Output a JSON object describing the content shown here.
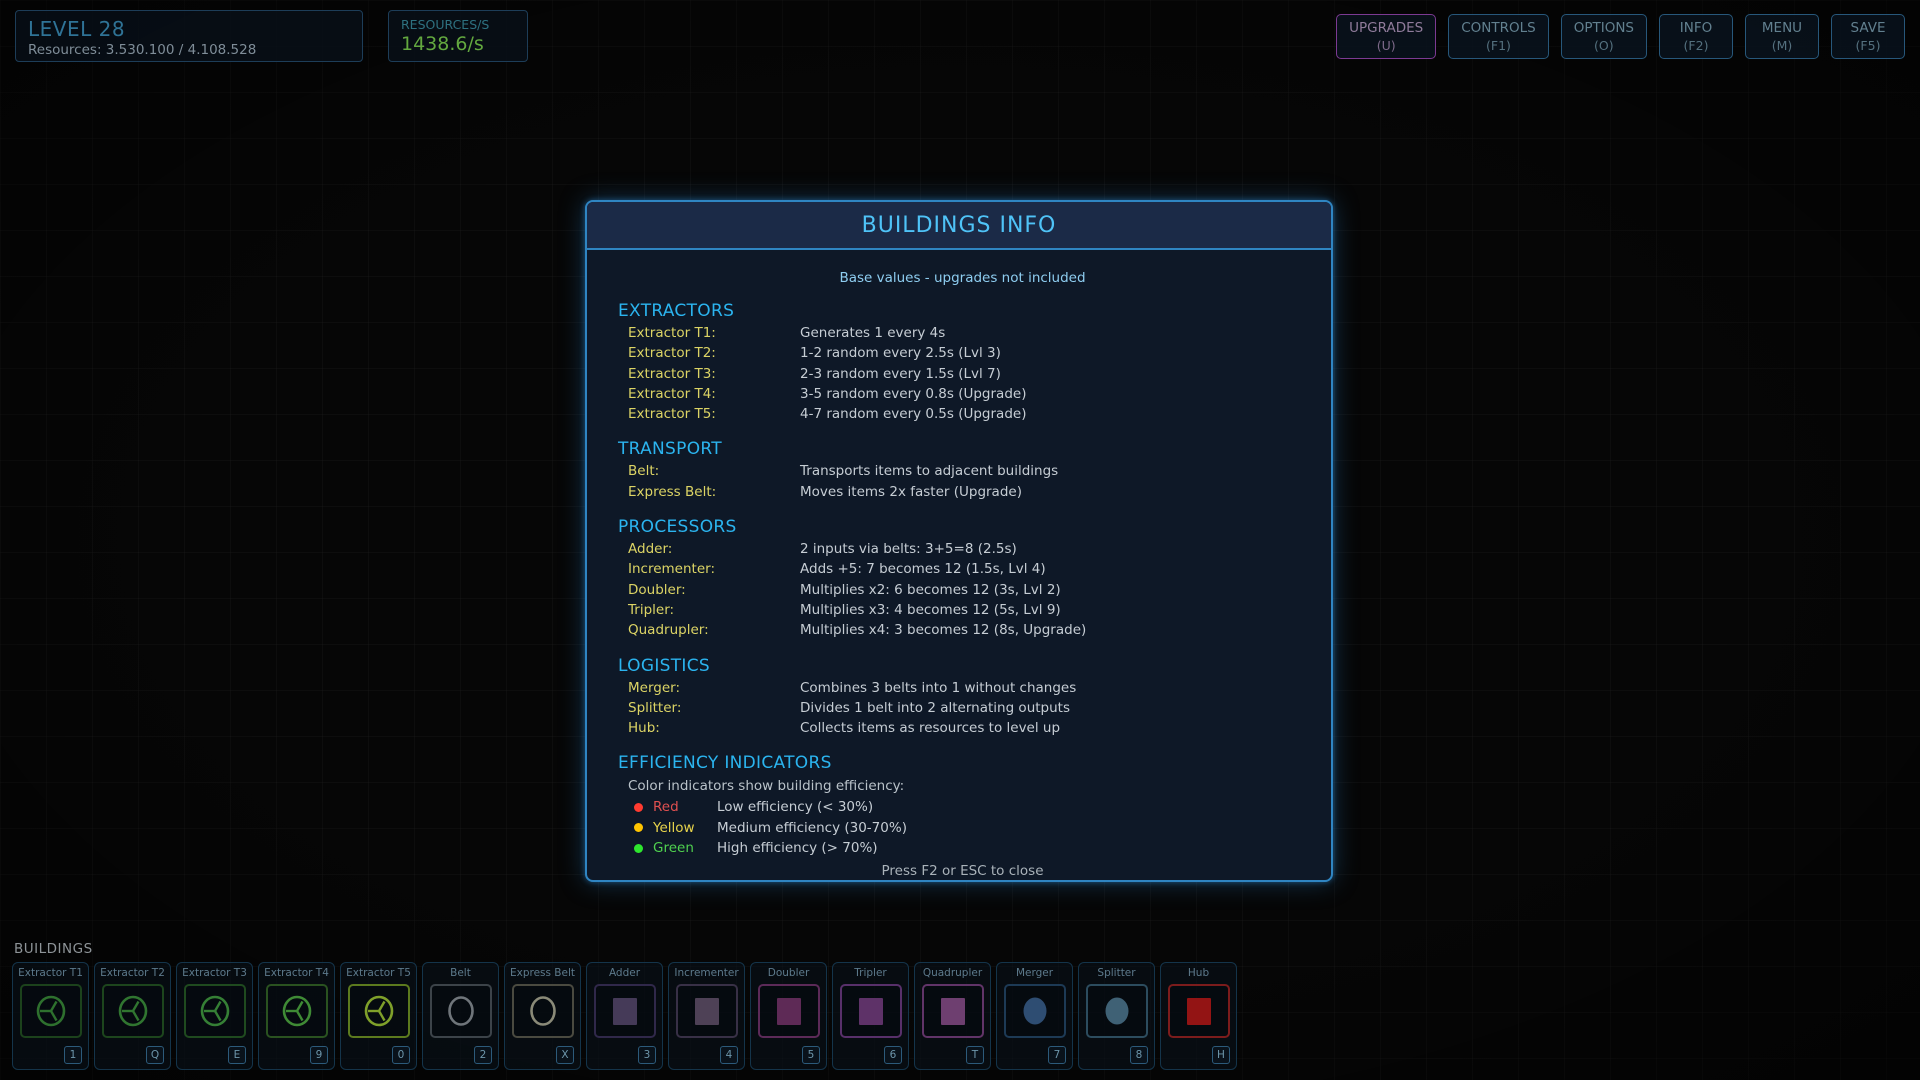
{
  "hud": {
    "level_panel": {
      "title": "LEVEL 28",
      "resources": "Resources: 3.530.100 / 4.108.528"
    },
    "rps_panel": {
      "label": "RESOURCES/S",
      "value": "1438.6/s"
    },
    "menu_buttons": [
      {
        "id": "upgrades",
        "label": "UPGRADES",
        "hotkey": "(U)",
        "accent": "purple"
      },
      {
        "id": "controls",
        "label": "CONTROLS",
        "hotkey": "(F1)",
        "accent": "teal"
      },
      {
        "id": "options",
        "label": "OPTIONS",
        "hotkey": "(O)",
        "accent": "teal"
      },
      {
        "id": "info",
        "label": "INFO",
        "hotkey": "(F2)",
        "accent": "teal"
      },
      {
        "id": "menu",
        "label": "MENU",
        "hotkey": "(M)",
        "accent": "teal"
      },
      {
        "id": "save",
        "label": "SAVE",
        "hotkey": "(F5)",
        "accent": "teal"
      }
    ]
  },
  "modal": {
    "title": "BUILDINGS INFO",
    "subtitle": "Base values - upgrades not included",
    "sections": [
      {
        "heading": "EXTRACTORS",
        "rows": [
          {
            "label": "Extractor T1:",
            "value": "Generates 1 every 4s"
          },
          {
            "label": "Extractor T2:",
            "value": "1-2 random every 2.5s (Lvl 3)"
          },
          {
            "label": "Extractor T3:",
            "value": "2-3 random every 1.5s (Lvl 7)"
          },
          {
            "label": "Extractor T4:",
            "value": "3-5 random every 0.8s (Upgrade)"
          },
          {
            "label": "Extractor T5:",
            "value": "4-7 random every 0.5s (Upgrade)"
          }
        ]
      },
      {
        "heading": "TRANSPORT",
        "rows": [
          {
            "label": "Belt:",
            "value": "Transports items to adjacent buildings"
          },
          {
            "label": "Express Belt:",
            "value": "Moves items 2x faster (Upgrade)"
          }
        ]
      },
      {
        "heading": "PROCESSORS",
        "rows": [
          {
            "label": "Adder:",
            "value": "2 inputs via belts: 3+5=8 (2.5s)"
          },
          {
            "label": "Incrementer:",
            "value": "Adds +5: 7 becomes 12 (1.5s, Lvl 4)"
          },
          {
            "label": "Doubler:",
            "value": "Multiplies x2: 6 becomes 12 (3s, Lvl 2)"
          },
          {
            "label": "Tripler:",
            "value": "Multiplies x3: 4 becomes 12 (5s, Lvl 9)"
          },
          {
            "label": "Quadrupler:",
            "value": "Multiplies x4: 3 becomes 12 (8s, Upgrade)"
          }
        ]
      },
      {
        "heading": "LOGISTICS",
        "rows": [
          {
            "label": "Merger:",
            "value": "Combines 3 belts into 1 without changes"
          },
          {
            "label": "Splitter:",
            "value": "Divides 1 belt into 2 alternating outputs"
          },
          {
            "label": "Hub:",
            "value": "Collects items as resources to level up"
          }
        ]
      }
    ],
    "efficiency": {
      "heading": "EFFICIENCY INDICATORS",
      "intro": "Color indicators show building efficiency:",
      "rows": [
        {
          "name": "Red",
          "name_color": "#e05050",
          "dot_color": "#ff3b30",
          "desc": "Low efficiency (< 30%)"
        },
        {
          "name": "Yellow",
          "name_color": "#e8d44c",
          "dot_color": "#ffc400",
          "desc": "Medium efficiency (30-70%)"
        },
        {
          "name": "Green",
          "name_color": "#4fd04f",
          "dot_color": "#2ee62e",
          "desc": "High efficiency (> 70%)"
        }
      ]
    },
    "footer": "Press F2 or ESC to close"
  },
  "toolbar": {
    "label": "BUILDINGS",
    "cards": [
      {
        "name": "Extractor T1",
        "hotkey": "1",
        "icon": "extractor-icon",
        "shape": "extractor",
        "icon_color": "#2e702e",
        "box_color": "#1c421c"
      },
      {
        "name": "Extractor T2",
        "hotkey": "Q",
        "icon": "extractor-icon",
        "shape": "extractor",
        "icon_color": "#307530",
        "box_color": "#1d451d"
      },
      {
        "name": "Extractor T3",
        "hotkey": "E",
        "icon": "extractor-icon",
        "shape": "extractor",
        "icon_color": "#357f35",
        "box_color": "#1f4a1f"
      },
      {
        "name": "Extractor T4",
        "hotkey": "9",
        "icon": "extractor-icon",
        "shape": "extractor",
        "icon_color": "#3f8a35",
        "box_color": "#2a5220"
      },
      {
        "name": "Extractor T5",
        "hotkey": "0",
        "icon": "extractor-icon",
        "shape": "extractor",
        "icon_color": "#7fa02a",
        "box_color": "#5c7a1e"
      },
      {
        "name": "Belt",
        "hotkey": "2",
        "icon": "belt-icon",
        "shape": "ring",
        "icon_color": "#6f757a",
        "box_color": "#3c4349"
      },
      {
        "name": "Express Belt",
        "hotkey": "X",
        "icon": "express-belt-icon",
        "shape": "ring",
        "icon_color": "#8a8a78",
        "box_color": "#4a4a40"
      },
      {
        "name": "Adder",
        "hotkey": "3",
        "icon": "adder-icon",
        "shape": "square",
        "icon_color": "#453a58",
        "box_color": "#30284a"
      },
      {
        "name": "Incrementer",
        "hotkey": "4",
        "icon": "incrementer-icon",
        "shape": "square",
        "icon_color": "#4e4156",
        "box_color": "#383046"
      },
      {
        "name": "Doubler",
        "hotkey": "5",
        "icon": "doubler-icon",
        "shape": "square",
        "icon_color": "#5e2a56",
        "box_color": "#5c2a58"
      },
      {
        "name": "Tripler",
        "hotkey": "6",
        "icon": "tripler-icon",
        "shape": "square",
        "icon_color": "#5e3268",
        "box_color": "#58306a"
      },
      {
        "name": "Quadrupler",
        "hotkey": "T",
        "icon": "quadrupler-icon",
        "shape": "square",
        "icon_color": "#6e3f70",
        "box_color": "#613468"
      },
      {
        "name": "Merger",
        "hotkey": "7",
        "icon": "merger-icon",
        "shape": "circle",
        "icon_color": "#2e4d72",
        "box_color": "#1d3a55"
      },
      {
        "name": "Splitter",
        "hotkey": "8",
        "icon": "splitter-icon",
        "shape": "circle",
        "icon_color": "#3f6175",
        "box_color": "#2c4c5e"
      },
      {
        "name": "Hub",
        "hotkey": "H",
        "icon": "hub-icon",
        "shape": "square",
        "icon_color": "#931414",
        "box_color": "#7c1c1c"
      }
    ]
  }
}
